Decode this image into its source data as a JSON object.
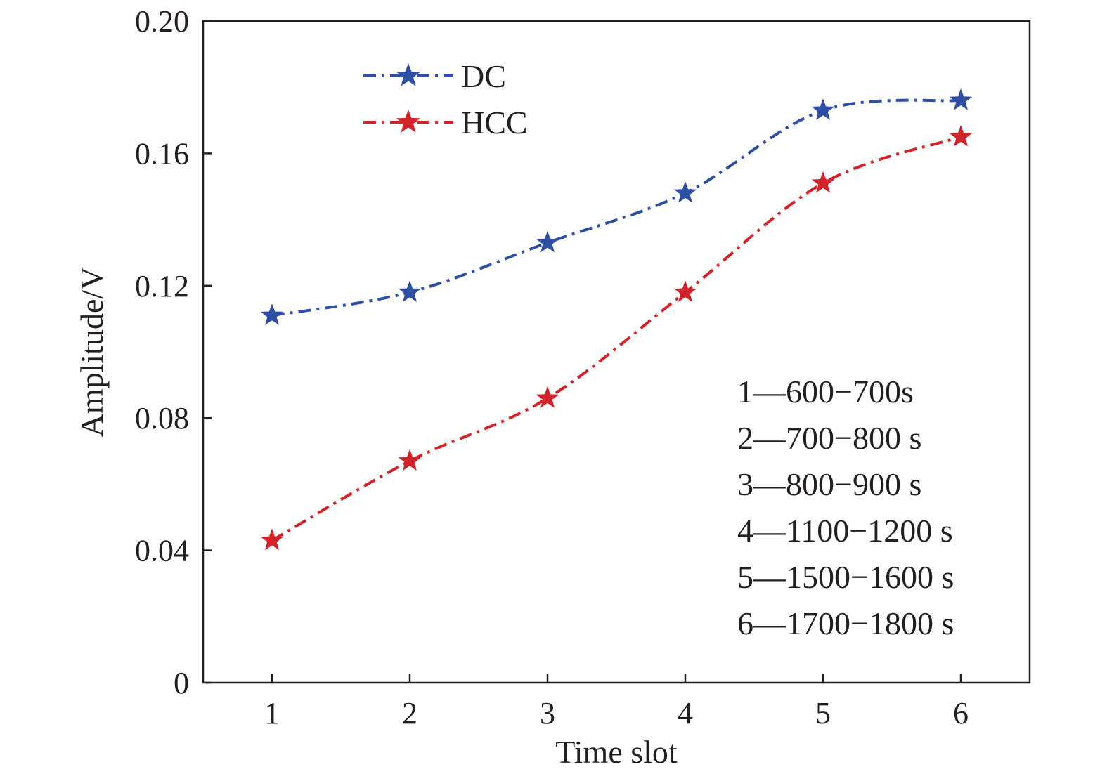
{
  "chart_data": {
    "type": "line",
    "xlabel": "Time slot",
    "ylabel": "Amplitude/V",
    "x": [
      1,
      2,
      3,
      4,
      5,
      6
    ],
    "xlim": [
      0.5,
      6.5
    ],
    "ylim": [
      0,
      0.2
    ],
    "xticks": [
      "1",
      "2",
      "3",
      "4",
      "5",
      "6"
    ],
    "yticks": [
      "0",
      "0.04",
      "0.08",
      "0.12",
      "0.16",
      "0.20"
    ],
    "series": [
      {
        "name": "DC",
        "color": "#2e4fa3",
        "marker": "star",
        "line": "dash-dot",
        "values": [
          0.111,
          0.118,
          0.133,
          0.148,
          0.173,
          0.176
        ]
      },
      {
        "name": "HCC",
        "color": "#d2232a",
        "marker": "star",
        "line": "dash-dot",
        "values": [
          0.043,
          0.067,
          0.086,
          0.118,
          0.151,
          0.165
        ]
      }
    ],
    "legend_position": "top-left",
    "grid": false,
    "annotations": [
      "1—600−700s",
      "2—700−800 s",
      "3—800−900 s",
      "4—1100−1200 s",
      "5—1500−1600 s",
      "6—1700−1800 s"
    ]
  }
}
